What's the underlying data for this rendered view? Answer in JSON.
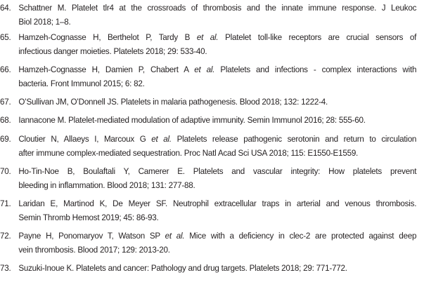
{
  "references": [
    {
      "number": "64.",
      "lines": [
        {
          "pre": "Schattner M. Platelet tlr4 at the crossroads of thrombosis and the innate immune response. J Leukoc",
          "em": "",
          "post": ""
        },
        {
          "pre": "Biol  2018; 1–8.",
          "em": "",
          "post": ""
        }
      ]
    },
    {
      "number": "65.",
      "lines": [
        {
          "pre": "Hamzeh-Cognasse H, Berthelot P, Tardy B ",
          "em": "et al.",
          "post": " Platelet toll-like receptors are crucial sensors of"
        },
        {
          "pre": "infectious danger moieties. Platelets 2018; 29: 533-40.",
          "em": "",
          "post": ""
        }
      ]
    },
    {
      "number": "66.",
      "lines": [
        {
          "pre": "Hamzeh-Cognasse H, Damien P, Chabert A ",
          "em": "et al.",
          "post": " Platelets and infections - complex interactions with"
        },
        {
          "pre": "bacteria. Front Immunol 2015; 6: 82.",
          "em": "",
          "post": ""
        }
      ]
    },
    {
      "number": "67.",
      "lines": [
        {
          "pre": "O’Sullivan JM, O’Donnell JS. Platelets in malaria pathogenesis. Blood 2018; 132: 1222-4.",
          "em": "",
          "post": ""
        }
      ]
    },
    {
      "number": "68.",
      "lines": [
        {
          "pre": "Iannacone M. Platelet-mediated modulation of adaptive immunity. Semin Immunol 2016; 28: 555-60.",
          "em": "",
          "post": ""
        }
      ]
    },
    {
      "number": "69.",
      "lines": [
        {
          "pre": "Cloutier N, Allaeys I, Marcoux G ",
          "em": "et al.",
          "post": " Platelets release pathogenic serotonin and return to circulation"
        },
        {
          "pre": "after immune complex-mediated sequestration. Proc Natl Acad Sci USA 2018; 115: E1550-E1559.",
          "em": "",
          "post": ""
        }
      ]
    },
    {
      "number": "70.",
      "lines": [
        {
          "pre": "Ho-Tin-Noe B, Boulaftali Y, Camerer E. Platelets and vascular integrity: How platelets prevent",
          "em": "",
          "post": ""
        },
        {
          "pre": "bleeding in inflammation. Blood 2018; 131: 277-88.",
          "em": "",
          "post": ""
        }
      ]
    },
    {
      "number": "71.",
      "lines": [
        {
          "pre": "Laridan E, Martinod K, De Meyer SF. Neutrophil extracellular traps in arterial and venous thrombosis.",
          "em": "",
          "post": ""
        },
        {
          "pre": "Semin Thromb Hemost 2019; 45: 86-93.",
          "em": "",
          "post": ""
        }
      ]
    },
    {
      "number": "72.",
      "lines": [
        {
          "pre": "Payne H, Ponomaryov T, Watson SP ",
          "em": "et al.",
          "post": " Mice with a deficiency in clec-2 are protected against deep"
        },
        {
          "pre": "vein thrombosis. Blood 2017; 129: 2013-20.",
          "em": "",
          "post": ""
        }
      ]
    },
    {
      "number": "73.",
      "lines": [
        {
          "pre": "Suzuki-Inoue K. Platelets and cancer: Pathology and drug targets. Platelets 2018; 29: 771-772.",
          "em": "",
          "post": ""
        }
      ]
    }
  ]
}
